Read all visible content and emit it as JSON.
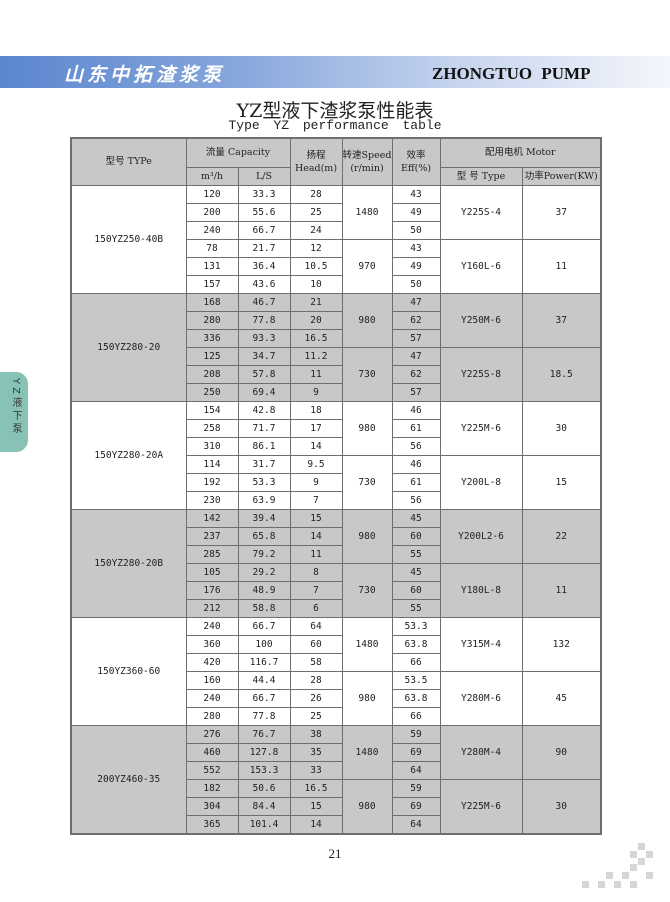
{
  "header": {
    "brand_cn": "山东中拓渣浆泵",
    "brand_en": "ZHONGTUO PUMP"
  },
  "title": "YZ型液下渣浆泵性能表",
  "subtitle": "Type YZ performance table",
  "side_tab": "YZ液下泵",
  "columns": {
    "type": "型号 TYPe",
    "capacity": "流量 Capacity",
    "m3h": "m³/h",
    "ls": "L/S",
    "head": "扬程 Head(m)",
    "speed": "转速Speed (r/min)",
    "eff": "效率 Eff(%)",
    "motor": "配用电机 Motor",
    "motor_type": "型 号 Type",
    "power": "功率Power(KW)"
  },
  "models": [
    {
      "name": "150YZ250-40B",
      "groups": [
        {
          "speed": "1480",
          "motor": "Y225S-4",
          "power": "37",
          "rows": [
            [
              "120",
              "33.3",
              "28",
              "43"
            ],
            [
              "200",
              "55.6",
              "25",
              "49"
            ],
            [
              "240",
              "66.7",
              "24",
              "50"
            ]
          ]
        },
        {
          "speed": "970",
          "motor": "Y160L-6",
          "power": "11",
          "rows": [
            [
              "78",
              "21.7",
              "12",
              "43"
            ],
            [
              "131",
              "36.4",
              "10.5",
              "49"
            ],
            [
              "157",
              "43.6",
              "10",
              "50"
            ]
          ]
        }
      ]
    },
    {
      "name": "150YZ280-20",
      "groups": [
        {
          "speed": "980",
          "motor": "Y250M-6",
          "power": "37",
          "rows": [
            [
              "168",
              "46.7",
              "21",
              "47"
            ],
            [
              "280",
              "77.8",
              "20",
              "62"
            ],
            [
              "336",
              "93.3",
              "16.5",
              "57"
            ]
          ]
        },
        {
          "speed": "730",
          "motor": "Y225S-8",
          "power": "18.5",
          "rows": [
            [
              "125",
              "34.7",
              "11.2",
              "47"
            ],
            [
              "208",
              "57.8",
              "11",
              "62"
            ],
            [
              "250",
              "69.4",
              "9",
              "57"
            ]
          ]
        }
      ]
    },
    {
      "name": "150YZ280-20A",
      "groups": [
        {
          "speed": "980",
          "motor": "Y225M-6",
          "power": "30",
          "rows": [
            [
              "154",
              "42.8",
              "18",
              "46"
            ],
            [
              "258",
              "71.7",
              "17",
              "61"
            ],
            [
              "310",
              "86.1",
              "14",
              "56"
            ]
          ]
        },
        {
          "speed": "730",
          "motor": "Y200L-8",
          "power": "15",
          "rows": [
            [
              "114",
              "31.7",
              "9.5",
              "46"
            ],
            [
              "192",
              "53.3",
              "9",
              "61"
            ],
            [
              "230",
              "63.9",
              "7",
              "56"
            ]
          ]
        }
      ]
    },
    {
      "name": "150YZ280-20B",
      "groups": [
        {
          "speed": "980",
          "motor": "Y200L2-6",
          "power": "22",
          "rows": [
            [
              "142",
              "39.4",
              "15",
              "45"
            ],
            [
              "237",
              "65.8",
              "14",
              "60"
            ],
            [
              "285",
              "79.2",
              "11",
              "55"
            ]
          ]
        },
        {
          "speed": "730",
          "motor": "Y180L-8",
          "power": "11",
          "rows": [
            [
              "105",
              "29.2",
              "8",
              "45"
            ],
            [
              "176",
              "48.9",
              "7",
              "60"
            ],
            [
              "212",
              "58.8",
              "6",
              "55"
            ]
          ]
        }
      ]
    },
    {
      "name": "150YZ360-60",
      "groups": [
        {
          "speed": "1480",
          "motor": "Y315M-4",
          "power": "132",
          "rows": [
            [
              "240",
              "66.7",
              "64",
              "53.3"
            ],
            [
              "360",
              "100",
              "60",
              "63.8"
            ],
            [
              "420",
              "116.7",
              "58",
              "66"
            ]
          ]
        },
        {
          "speed": "980",
          "motor": "Y280M-6",
          "power": "45",
          "rows": [
            [
              "160",
              "44.4",
              "28",
              "53.5"
            ],
            [
              "240",
              "66.7",
              "26",
              "63.8"
            ],
            [
              "280",
              "77.8",
              "25",
              "66"
            ]
          ]
        }
      ]
    },
    {
      "name": "200YZ460-35",
      "groups": [
        {
          "speed": "1480",
          "motor": "Y280M-4",
          "power": "90",
          "rows": [
            [
              "276",
              "76.7",
              "38",
              "59"
            ],
            [
              "460",
              "127.8",
              "35",
              "69"
            ],
            [
              "552",
              "153.3",
              "33",
              "64"
            ]
          ]
        },
        {
          "speed": "980",
          "motor": "Y225M-6",
          "power": "30",
          "rows": [
            [
              "182",
              "50.6",
              "16.5",
              "59"
            ],
            [
              "304",
              "84.4",
              "15",
              "69"
            ],
            [
              "365",
              "101.4",
              "14",
              "64"
            ]
          ]
        }
      ]
    }
  ],
  "page_number": "21"
}
